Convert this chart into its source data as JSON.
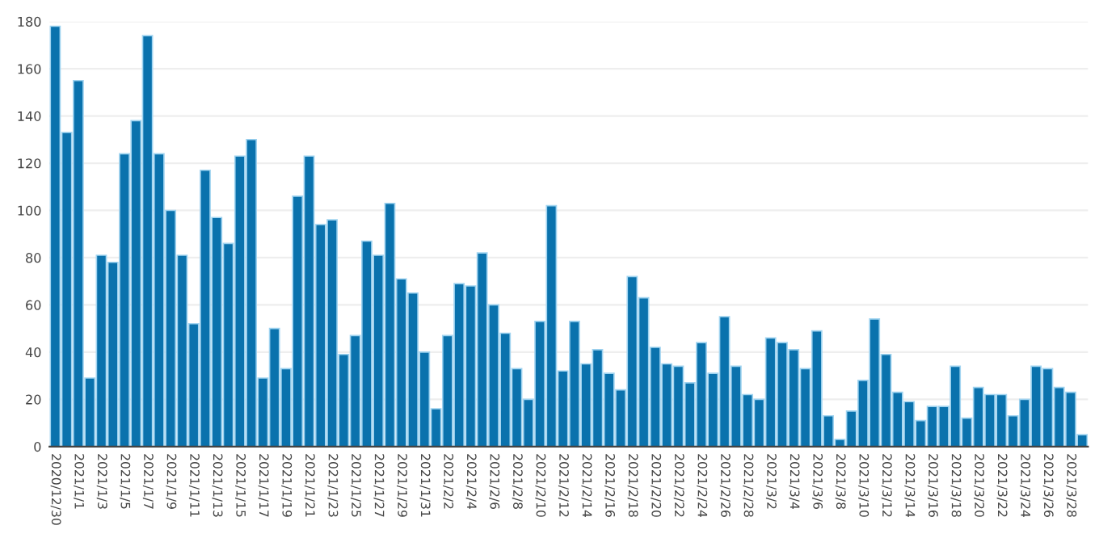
{
  "chart_data": {
    "type": "bar",
    "categories": [
      "2020/12/30",
      null,
      "2021/1/1",
      null,
      "2021/1/3",
      null,
      "2021/1/5",
      null,
      "2021/1/7",
      null,
      "2021/1/9",
      null,
      "2021/1/11",
      null,
      "2021/1/13",
      null,
      "2021/1/15",
      null,
      "2021/1/17",
      null,
      "2021/1/19",
      null,
      "2021/1/21",
      null,
      "2021/1/23",
      null,
      "2021/1/25",
      null,
      "2021/1/27",
      null,
      "2021/1/29",
      null,
      "2021/1/31",
      null,
      "2021/2/2",
      null,
      "2021/2/4",
      null,
      "2021/2/6",
      null,
      "2021/2/8",
      null,
      "2021/2/10",
      null,
      "2021/2/12",
      null,
      "2021/2/14",
      null,
      "2021/2/16",
      null,
      "2021/2/18",
      null,
      "2021/2/20",
      null,
      "2021/2/22",
      null,
      "2021/2/24",
      null,
      "2021/2/26",
      null,
      "2021/2/28",
      null,
      "2021/3/2",
      null,
      "2021/3/4",
      null,
      "2021/3/6",
      null,
      "2021/3/8",
      null,
      "2021/3/10",
      null,
      "2021/3/12",
      null,
      "2021/3/14",
      null,
      "2021/3/16",
      null,
      "2021/3/18",
      null,
      "2021/3/20",
      null,
      "2021/3/22",
      null,
      "2021/3/24",
      null,
      "2021/3/26",
      null,
      "2021/3/28",
      null
    ],
    "values": [
      178,
      133,
      155,
      29,
      81,
      78,
      124,
      138,
      174,
      124,
      100,
      81,
      52,
      117,
      97,
      86,
      123,
      130,
      29,
      50,
      33,
      106,
      123,
      94,
      96,
      39,
      47,
      87,
      81,
      103,
      71,
      65,
      40,
      16,
      47,
      69,
      68,
      82,
      60,
      48,
      33,
      20,
      53,
      102,
      32,
      53,
      35,
      41,
      31,
      24,
      72,
      63,
      42,
      35,
      34,
      27,
      44,
      31,
      55,
      34,
      22,
      20,
      46,
      44,
      41,
      33,
      49,
      13,
      3,
      15,
      28,
      54,
      39,
      23,
      19,
      11,
      17,
      17,
      34,
      12,
      25,
      22,
      22,
      13,
      20,
      34,
      33,
      25,
      23,
      5
    ],
    "color": "#0a72ad",
    "ylim": [
      0,
      180
    ],
    "yticks": [
      0,
      20,
      40,
      60,
      80,
      100,
      120,
      140,
      160,
      180
    ],
    "grid": "y"
  }
}
